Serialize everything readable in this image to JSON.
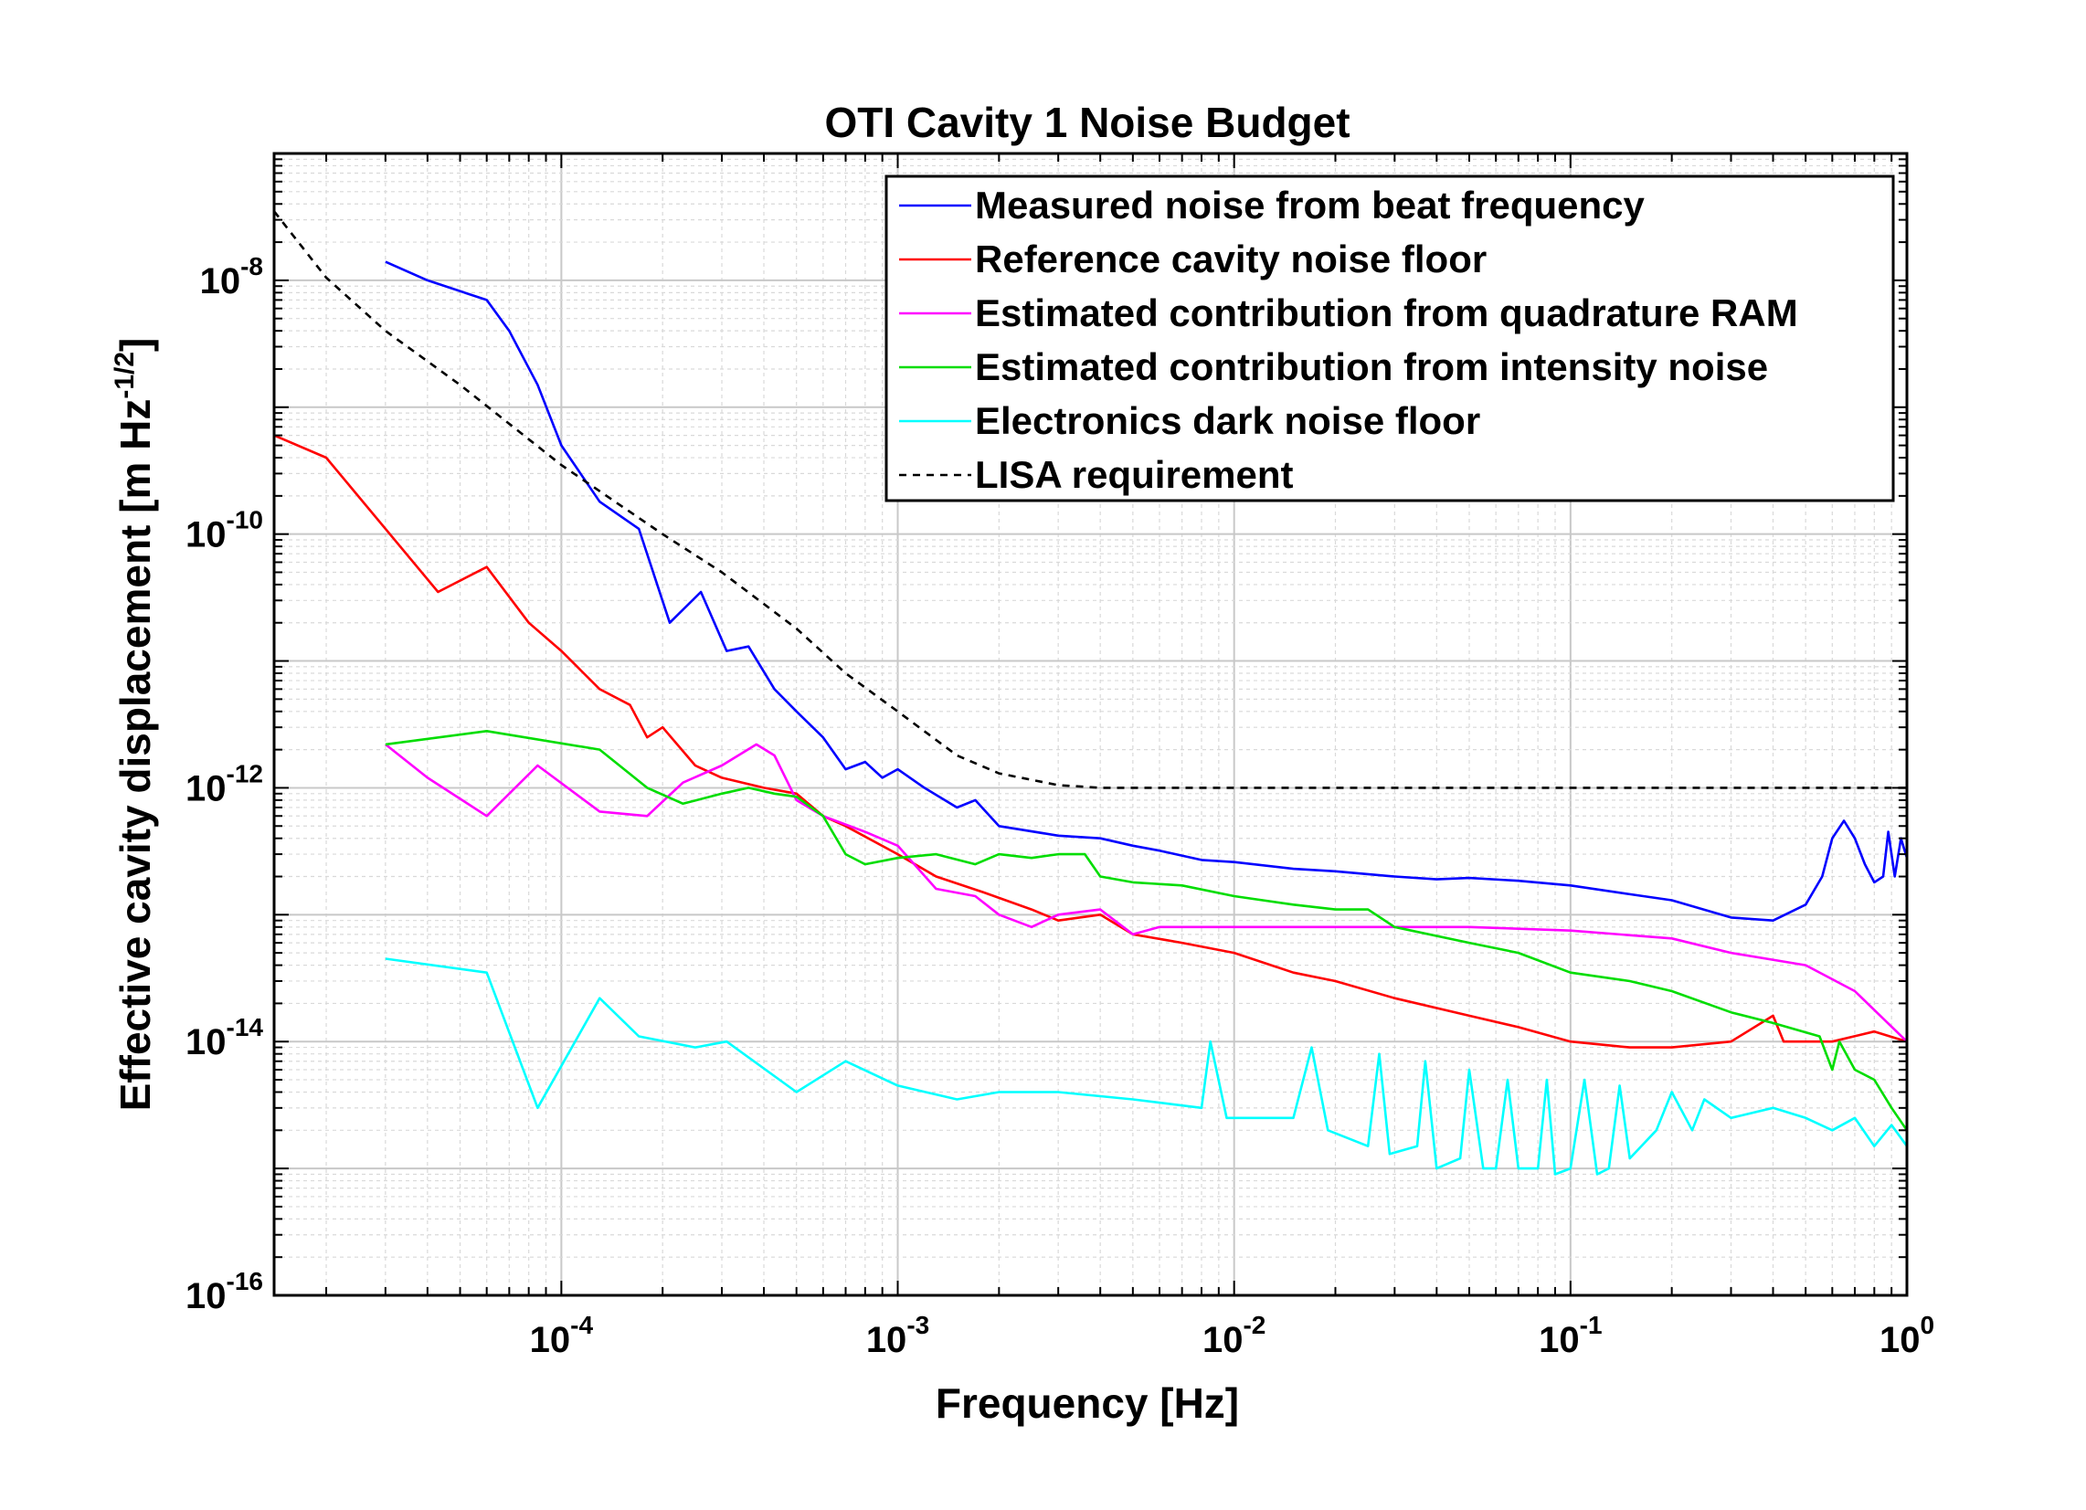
{
  "chart_data": {
    "type": "line",
    "title": "OTI Cavity 1 Noise Budget",
    "xlabel": "Frequency  [Hz]",
    "ylabel_main": "Effective cavity displacement  [m Hz",
    "ylabel_sup": "-1/2",
    "ylabel_end": "]",
    "xscale": "log",
    "yscale": "log",
    "xlim": [
      1.4e-05,
      1.0
    ],
    "ylim": [
      1e-16,
      1e-07
    ],
    "grid": true,
    "legend_position": "top-right",
    "x_ticks": [
      {
        "value": 0.0001,
        "base": "10",
        "exp": "-4"
      },
      {
        "value": 0.001,
        "base": "10",
        "exp": "-3"
      },
      {
        "value": 0.01,
        "base": "10",
        "exp": "-2"
      },
      {
        "value": 0.1,
        "base": "10",
        "exp": "-1"
      },
      {
        "value": 1,
        "base": "10",
        "exp": "0"
      }
    ],
    "y_ticks": [
      {
        "value": 1e-16,
        "base": "10",
        "exp": "-16"
      },
      {
        "value": 1e-14,
        "base": "10",
        "exp": "-14"
      },
      {
        "value": 1e-12,
        "base": "10",
        "exp": "-12"
      },
      {
        "value": 1e-10,
        "base": "10",
        "exp": "-10"
      },
      {
        "value": 1e-08,
        "base": "10",
        "exp": "-8"
      }
    ],
    "series": [
      {
        "name": "Measured noise from beat frequency",
        "color": "#0000ff",
        "style": "solid",
        "points": [
          [
            3e-05,
            1.4e-08
          ],
          [
            4e-05,
            1e-08
          ],
          [
            6e-05,
            7e-09
          ],
          [
            7e-05,
            4e-09
          ],
          [
            8.5e-05,
            1.5e-09
          ],
          [
            0.0001,
            5e-10
          ],
          [
            0.00013,
            1.8e-10
          ],
          [
            0.00017,
            1.1e-10
          ],
          [
            0.00021,
            2e-11
          ],
          [
            0.00026,
            3.5e-11
          ],
          [
            0.00031,
            1.2e-11
          ],
          [
            0.00036,
            1.3e-11
          ],
          [
            0.00043,
            6e-12
          ],
          [
            0.0005,
            4e-12
          ],
          [
            0.0006,
            2.5e-12
          ],
          [
            0.0007,
            1.4e-12
          ],
          [
            0.0008,
            1.6e-12
          ],
          [
            0.0009,
            1.2e-12
          ],
          [
            0.001,
            1.4e-12
          ],
          [
            0.0012,
            1e-12
          ],
          [
            0.0015,
            7e-13
          ],
          [
            0.0017,
            8e-13
          ],
          [
            0.002,
            5e-13
          ],
          [
            0.003,
            4.2e-13
          ],
          [
            0.004,
            4e-13
          ],
          [
            0.005,
            3.5e-13
          ],
          [
            0.006,
            3.2e-13
          ],
          [
            0.008,
            2.7e-13
          ],
          [
            0.01,
            2.6e-13
          ],
          [
            0.015,
            2.3e-13
          ],
          [
            0.02,
            2.2e-13
          ],
          [
            0.03,
            2e-13
          ],
          [
            0.04,
            1.9e-13
          ],
          [
            0.05,
            1.95e-13
          ],
          [
            0.07,
            1.85e-13
          ],
          [
            0.1,
            1.7e-13
          ],
          [
            0.15,
            1.45e-13
          ],
          [
            0.2,
            1.3e-13
          ],
          [
            0.3,
            9.5e-14
          ],
          [
            0.4,
            9e-14
          ],
          [
            0.5,
            1.2e-13
          ],
          [
            0.56,
            2e-13
          ],
          [
            0.6,
            4e-13
          ],
          [
            0.65,
            5.5e-13
          ],
          [
            0.7,
            4e-13
          ],
          [
            0.75,
            2.5e-13
          ],
          [
            0.8,
            1.8e-13
          ],
          [
            0.85,
            2e-13
          ],
          [
            0.88,
            4.5e-13
          ],
          [
            0.92,
            2e-13
          ],
          [
            0.96,
            4e-13
          ],
          [
            1,
            2.8e-13
          ]
        ]
      },
      {
        "name": "Reference cavity noise floor",
        "color": "#ff0000",
        "style": "solid",
        "points": [
          [
            1.4e-05,
            6e-10
          ],
          [
            2e-05,
            4e-10
          ],
          [
            3e-05,
            1.1e-10
          ],
          [
            4.3e-05,
            3.5e-11
          ],
          [
            6e-05,
            5.5e-11
          ],
          [
            8e-05,
            2e-11
          ],
          [
            0.0001,
            1.2e-11
          ],
          [
            0.00013,
            6e-12
          ],
          [
            0.00016,
            4.5e-12
          ],
          [
            0.00018,
            2.5e-12
          ],
          [
            0.0002,
            3e-12
          ],
          [
            0.00025,
            1.5e-12
          ],
          [
            0.0003,
            1.2e-12
          ],
          [
            0.0004,
            1e-12
          ],
          [
            0.0005,
            9e-13
          ],
          [
            0.0006,
            6e-13
          ],
          [
            0.0007,
            5e-13
          ],
          [
            0.001,
            3e-13
          ],
          [
            0.0013,
            2e-13
          ],
          [
            0.0018,
            1.5e-13
          ],
          [
            0.0025,
            1.1e-13
          ],
          [
            0.003,
            9e-14
          ],
          [
            0.004,
            1e-13
          ],
          [
            0.005,
            7e-14
          ],
          [
            0.007,
            6e-14
          ],
          [
            0.01,
            5e-14
          ],
          [
            0.015,
            3.5e-14
          ],
          [
            0.02,
            3e-14
          ],
          [
            0.03,
            2.2e-14
          ],
          [
            0.05,
            1.6e-14
          ],
          [
            0.07,
            1.3e-14
          ],
          [
            0.1,
            1e-14
          ],
          [
            0.15,
            9e-15
          ],
          [
            0.2,
            9e-15
          ],
          [
            0.3,
            1e-14
          ],
          [
            0.4,
            1.6e-14
          ],
          [
            0.43,
            1e-14
          ],
          [
            0.6,
            1e-14
          ],
          [
            0.8,
            1.2e-14
          ],
          [
            1,
            1e-14
          ]
        ]
      },
      {
        "name": "Estimated contribution from quadrature RAM",
        "color": "#ff00ff",
        "style": "solid",
        "points": [
          [
            3e-05,
            2.2e-12
          ],
          [
            4e-05,
            1.2e-12
          ],
          [
            6e-05,
            6e-13
          ],
          [
            8.5e-05,
            1.5e-12
          ],
          [
            0.00013,
            6.5e-13
          ],
          [
            0.00018,
            6e-13
          ],
          [
            0.00023,
            1.1e-12
          ],
          [
            0.0003,
            1.5e-12
          ],
          [
            0.00038,
            2.2e-12
          ],
          [
            0.00043,
            1.8e-12
          ],
          [
            0.0005,
            8e-13
          ],
          [
            0.0006,
            6e-13
          ],
          [
            0.0008,
            4.5e-13
          ],
          [
            0.001,
            3.5e-13
          ],
          [
            0.0013,
            1.6e-13
          ],
          [
            0.0017,
            1.4e-13
          ],
          [
            0.002,
            1e-13
          ],
          [
            0.0025,
            8e-14
          ],
          [
            0.003,
            1e-13
          ],
          [
            0.004,
            1.1e-13
          ],
          [
            0.005,
            7e-14
          ],
          [
            0.006,
            8e-14
          ],
          [
            0.008,
            8e-14
          ],
          [
            0.01,
            8e-14
          ],
          [
            0.015,
            8e-14
          ],
          [
            0.02,
            8e-14
          ],
          [
            0.03,
            8e-14
          ],
          [
            0.05,
            8e-14
          ],
          [
            0.1,
            7.5e-14
          ],
          [
            0.2,
            6.5e-14
          ],
          [
            0.3,
            5e-14
          ],
          [
            0.5,
            4e-14
          ],
          [
            0.7,
            2.5e-14
          ],
          [
            1,
            1e-14
          ]
        ]
      },
      {
        "name": "Estimated contribution from intensity noise",
        "color": "#00dd00",
        "style": "solid",
        "points": [
          [
            3e-05,
            2.2e-12
          ],
          [
            6e-05,
            2.8e-12
          ],
          [
            0.00013,
            2e-12
          ],
          [
            0.00018,
            1e-12
          ],
          [
            0.00023,
            7.5e-13
          ],
          [
            0.0003,
            9e-13
          ],
          [
            0.00036,
            1e-12
          ],
          [
            0.00043,
            9e-13
          ],
          [
            0.0005,
            8.5e-13
          ],
          [
            0.0006,
            6e-13
          ],
          [
            0.0007,
            3e-13
          ],
          [
            0.0008,
            2.5e-13
          ],
          [
            0.001,
            2.8e-13
          ],
          [
            0.0013,
            3e-13
          ],
          [
            0.0017,
            2.5e-13
          ],
          [
            0.002,
            3e-13
          ],
          [
            0.0025,
            2.8e-13
          ],
          [
            0.003,
            3e-13
          ],
          [
            0.0036,
            3e-13
          ],
          [
            0.004,
            2e-13
          ],
          [
            0.005,
            1.8e-13
          ],
          [
            0.007,
            1.7e-13
          ],
          [
            0.01,
            1.4e-13
          ],
          [
            0.015,
            1.2e-13
          ],
          [
            0.02,
            1.1e-13
          ],
          [
            0.025,
            1.1e-13
          ],
          [
            0.03,
            8e-14
          ],
          [
            0.05,
            6e-14
          ],
          [
            0.07,
            5e-14
          ],
          [
            0.1,
            3.5e-14
          ],
          [
            0.15,
            3e-14
          ],
          [
            0.2,
            2.5e-14
          ],
          [
            0.3,
            1.7e-14
          ],
          [
            0.4,
            1.4e-14
          ],
          [
            0.55,
            1.1e-14
          ],
          [
            0.6,
            6e-15
          ],
          [
            0.63,
            1e-14
          ],
          [
            0.7,
            6e-15
          ],
          [
            0.8,
            5e-15
          ],
          [
            0.9,
            3e-15
          ],
          [
            1,
            2e-15
          ]
        ]
      },
      {
        "name": "Electronics dark noise floor",
        "color": "#00ffff",
        "style": "solid",
        "points": [
          [
            3e-05,
            4.5e-14
          ],
          [
            6e-05,
            3.5e-14
          ],
          [
            8.5e-05,
            3e-15
          ],
          [
            0.00013,
            2.2e-14
          ],
          [
            0.00017,
            1.1e-14
          ],
          [
            0.00025,
            9e-15
          ],
          [
            0.00031,
            1e-14
          ],
          [
            0.0005,
            4e-15
          ],
          [
            0.0007,
            7e-15
          ],
          [
            0.001,
            4.5e-15
          ],
          [
            0.0015,
            3.5e-15
          ],
          [
            0.002,
            4e-15
          ],
          [
            0.003,
            4e-15
          ],
          [
            0.005,
            3.5e-15
          ],
          [
            0.008,
            3e-15
          ],
          [
            0.0085,
            1e-14
          ],
          [
            0.0095,
            2.5e-15
          ],
          [
            0.015,
            2.5e-15
          ],
          [
            0.017,
            9e-15
          ],
          [
            0.019,
            2e-15
          ],
          [
            0.025,
            1.5e-15
          ],
          [
            0.027,
            8e-15
          ],
          [
            0.029,
            1.3e-15
          ],
          [
            0.035,
            1.5e-15
          ],
          [
            0.037,
            7e-15
          ],
          [
            0.04,
            1e-15
          ],
          [
            0.047,
            1.2e-15
          ],
          [
            0.05,
            6e-15
          ],
          [
            0.055,
            1e-15
          ],
          [
            0.06,
            1e-15
          ],
          [
            0.065,
            5e-15
          ],
          [
            0.07,
            1e-15
          ],
          [
            0.08,
            1e-15
          ],
          [
            0.085,
            5e-15
          ],
          [
            0.09,
            9e-16
          ],
          [
            0.1,
            1e-15
          ],
          [
            0.11,
            5e-15
          ],
          [
            0.12,
            9e-16
          ],
          [
            0.13,
            1e-15
          ],
          [
            0.14,
            4.5e-15
          ],
          [
            0.15,
            1.2e-15
          ],
          [
            0.18,
            2e-15
          ],
          [
            0.2,
            4e-15
          ],
          [
            0.23,
            2e-15
          ],
          [
            0.25,
            3.5e-15
          ],
          [
            0.3,
            2.5e-15
          ],
          [
            0.4,
            3e-15
          ],
          [
            0.5,
            2.5e-15
          ],
          [
            0.6,
            2e-15
          ],
          [
            0.7,
            2.5e-15
          ],
          [
            0.8,
            1.5e-15
          ],
          [
            0.9,
            2.2e-15
          ],
          [
            1,
            1.5e-15
          ]
        ]
      },
      {
        "name": "LISA requirement",
        "color": "#000000",
        "style": "dashed",
        "points": [
          [
            1.4e-05,
            3.5e-08
          ],
          [
            2e-05,
            1.05e-08
          ],
          [
            3e-05,
            4e-09
          ],
          [
            5e-05,
            1.5e-09
          ],
          [
            0.0001,
            3.5e-10
          ],
          [
            0.0002,
            1e-10
          ],
          [
            0.0003,
            5e-11
          ],
          [
            0.0005,
            1.8e-11
          ],
          [
            0.0007,
            8e-12
          ],
          [
            0.001,
            4e-12
          ],
          [
            0.0015,
            1.8e-12
          ],
          [
            0.002,
            1.3e-12
          ],
          [
            0.003,
            1.05e-12
          ],
          [
            0.004,
            1e-12
          ],
          [
            1,
            1e-12
          ]
        ]
      }
    ]
  }
}
